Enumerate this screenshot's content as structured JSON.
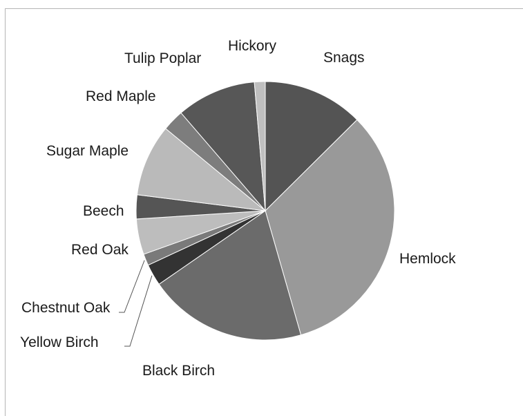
{
  "chart_data": {
    "type": "pie",
    "title": "",
    "start": "12 o'clock",
    "direction": "clockwise",
    "legend": "none",
    "slices": [
      {
        "label": "Snags",
        "value": 13.0,
        "color": "#545454"
      },
      {
        "label": "Hemlock",
        "value": 34.1,
        "color": "#999999"
      },
      {
        "label": "Black Birch",
        "value": 20.5,
        "color": "#6b6b6b"
      },
      {
        "label": "Yellow Birch",
        "value": 2.8,
        "color": "#333333"
      },
      {
        "label": "Chestnut Oak",
        "value": 1.5,
        "color": "#7a7a7a"
      },
      {
        "label": "Red Oak",
        "value": 4.6,
        "color": "#bdbdbd"
      },
      {
        "label": "Beech",
        "value": 3.1,
        "color": "#555555"
      },
      {
        "label": "Sugar Maple",
        "value": 9.3,
        "color": "#bababa"
      },
      {
        "label": "Red Maple",
        "value": 2.8,
        "color": "#7d7d7d"
      },
      {
        "label": "Tulip Poplar",
        "value": 10.3,
        "color": "#575757"
      },
      {
        "label": "Hickory",
        "value": 1.4,
        "color": "#bfbfbf"
      }
    ]
  }
}
